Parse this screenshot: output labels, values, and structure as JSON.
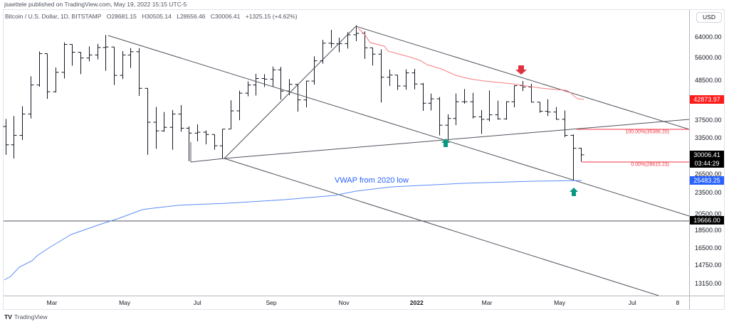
{
  "publisher": "jsaettele published on TradingView.com, May 19, 2022 15:15 UTC-5",
  "legend": {
    "symbol": "Bitcoin / U.S. Dollar, 1D, BITSTAMP",
    "open": "O28681.15",
    "high": "H30505.14",
    "low": "L28656.46",
    "close": "C30006.41",
    "change": "+1325.15 (+4.62%)"
  },
  "currency_button": "USD",
  "colors": {
    "candles": "#131722",
    "ma": "#f23645",
    "vwap": "#2962ff",
    "arrow_up": "#089981",
    "arrow_down": "#f23645"
  },
  "chart_data": {
    "type": "ohlc",
    "yscale": "log",
    "ylim": [
      12000,
      72000
    ],
    "y_ticks": [
      64000,
      56000,
      48500,
      37500,
      33500,
      26500,
      23500,
      20500,
      18500,
      16500,
      14750,
      13150
    ],
    "y_tick_labels": [
      "64000.00",
      "56000.00",
      "48500.00",
      "37500.00",
      "33500.00",
      "26500.00",
      "23500.00",
      "20500.00",
      "18500.00",
      "16500.00",
      "14750.00",
      "13150.00"
    ],
    "x_ticks": [
      {
        "label": "Mar",
        "date": "2021-03-01"
      },
      {
        "label": "May",
        "date": "2021-05-01"
      },
      {
        "label": "Jul",
        "date": "2021-07-01"
      },
      {
        "label": "Sep",
        "date": "2021-09-01"
      },
      {
        "label": "Nov",
        "date": "2021-11-01"
      },
      {
        "label": "2022",
        "date": "2022-01-01",
        "bold": true
      },
      {
        "label": "Mar",
        "date": "2022-03-01"
      },
      {
        "label": "May",
        "date": "2022-05-01"
      },
      {
        "label": "Jul",
        "date": "2022-07-01"
      },
      {
        "label": "8",
        "date": "2022-08-08"
      }
    ],
    "bars": [
      [
        "2021-01-18",
        36000,
        37800,
        30000,
        32000
      ],
      [
        "2021-01-25",
        32000,
        38500,
        29300,
        34000
      ],
      [
        "2021-02-01",
        34000,
        41000,
        33000,
        39000
      ],
      [
        "2021-02-08",
        39000,
        49700,
        37900,
        47000
      ],
      [
        "2021-02-15",
        47000,
        58300,
        46500,
        57500
      ],
      [
        "2021-02-22",
        57500,
        57500,
        43000,
        45000
      ],
      [
        "2021-03-01",
        45000,
        52600,
        44800,
        51000
      ],
      [
        "2021-03-08",
        51000,
        61800,
        49000,
        61000
      ],
      [
        "2021-03-15",
        61000,
        60000,
        53200,
        58000
      ],
      [
        "2021-03-22",
        58000,
        58000,
        50400,
        55900
      ],
      [
        "2021-03-29",
        55900,
        60200,
        54700,
        57000
      ],
      [
        "2021-04-05",
        57000,
        61200,
        55400,
        59800
      ],
      [
        "2021-04-12",
        59800,
        64800,
        51500,
        60000
      ],
      [
        "2021-04-19",
        60000,
        57500,
        47000,
        50000
      ],
      [
        "2021-04-26",
        50000,
        58400,
        48800,
        57000
      ],
      [
        "2021-05-03",
        57000,
        59600,
        52400,
        58200
      ],
      [
        "2021-05-10",
        58200,
        59600,
        43800,
        46000
      ],
      [
        "2021-05-17",
        46000,
        45000,
        30000,
        37000
      ],
      [
        "2021-05-24",
        37000,
        40800,
        31200,
        35000
      ],
      [
        "2021-05-31",
        35000,
        39500,
        34800,
        35800
      ],
      [
        "2021-06-07",
        35800,
        40000,
        31000,
        39000
      ],
      [
        "2021-06-14",
        39000,
        41300,
        34800,
        35600
      ],
      [
        "2021-06-21",
        35600,
        36000,
        28800,
        34500
      ],
      [
        "2021-06-28",
        34500,
        36500,
        32700,
        34700
      ],
      [
        "2021-07-05",
        34700,
        35100,
        32100,
        34200
      ],
      [
        "2021-07-12",
        34200,
        33900,
        31000,
        31800
      ],
      [
        "2021-07-19",
        31800,
        35400,
        29300,
        35400
      ],
      [
        "2021-07-26",
        35400,
        42600,
        35400,
        39800
      ],
      [
        "2021-08-02",
        39800,
        45300,
        37500,
        44600
      ],
      [
        "2021-08-09",
        44600,
        48100,
        43700,
        47000
      ],
      [
        "2021-08-16",
        47000,
        50500,
        43900,
        49000
      ],
      [
        "2021-08-23",
        49000,
        50400,
        46400,
        48800
      ],
      [
        "2021-08-30",
        48800,
        52900,
        46500,
        51800
      ],
      [
        "2021-09-06",
        51800,
        52800,
        42800,
        45200
      ],
      [
        "2021-09-13",
        45200,
        48800,
        44000,
        47200
      ],
      [
        "2021-09-20",
        47200,
        47300,
        39600,
        42700
      ],
      [
        "2021-09-27",
        42700,
        48300,
        40700,
        48200
      ],
      [
        "2021-10-04",
        48200,
        56500,
        47100,
        54900
      ],
      [
        "2021-10-11",
        54900,
        62800,
        53900,
        61500
      ],
      [
        "2021-10-18",
        61500,
        67000,
        59700,
        61300
      ],
      [
        "2021-10-25",
        61300,
        63700,
        58000,
        61300
      ],
      [
        "2021-11-01",
        61300,
        66000,
        59400,
        64900
      ],
      [
        "2021-11-08",
        64900,
        69000,
        62300,
        65500
      ],
      [
        "2021-11-15",
        65500,
        66300,
        55600,
        59700
      ],
      [
        "2021-11-22",
        59700,
        59300,
        53300,
        57300
      ],
      [
        "2021-11-29",
        57300,
        59100,
        42000,
        49400
      ],
      [
        "2021-12-06",
        49400,
        51900,
        46700,
        50100
      ],
      [
        "2021-12-13",
        50100,
        50000,
        45500,
        46700
      ],
      [
        "2021-12-20",
        46700,
        52000,
        45600,
        50800
      ],
      [
        "2021-12-27",
        50800,
        52100,
        45700,
        47300
      ],
      [
        "2022-01-03",
        47300,
        47600,
        39800,
        41800
      ],
      [
        "2022-01-10",
        41800,
        44500,
        39900,
        43000
      ],
      [
        "2022-01-17",
        43000,
        43500,
        34000,
        36300
      ],
      [
        "2022-01-24",
        36300,
        38900,
        32900,
        37900
      ],
      [
        "2022-01-31",
        37900,
        44500,
        36300,
        42200
      ],
      [
        "2022-02-07",
        42200,
        45800,
        41700,
        42200
      ],
      [
        "2022-02-14",
        42200,
        44700,
        37900,
        38300
      ],
      [
        "2022-02-21",
        38300,
        40000,
        34300,
        37700
      ],
      [
        "2022-02-28",
        37700,
        45400,
        37200,
        38800
      ],
      [
        "2022-03-07",
        38800,
        42500,
        37600,
        37800
      ],
      [
        "2022-03-14",
        37800,
        42300,
        37600,
        42200
      ],
      [
        "2022-03-21",
        42200,
        46900,
        40700,
        46800
      ],
      [
        "2022-03-28",
        46800,
        48200,
        45200,
        46400
      ],
      [
        "2022-04-04",
        46400,
        47400,
        42000,
        42100
      ],
      [
        "2022-04-11",
        42100,
        41500,
        39300,
        39700
      ],
      [
        "2022-04-18",
        39700,
        42900,
        38500,
        39500
      ],
      [
        "2022-04-25",
        39500,
        40800,
        37600,
        37700
      ],
      [
        "2022-05-02",
        37700,
        39900,
        33600,
        34000
      ],
      [
        "2022-05-09",
        34000,
        34200,
        25400,
        31300
      ],
      [
        "2022-05-16",
        31300,
        31400,
        28700,
        30006
      ]
    ],
    "price_badges": [
      {
        "value": 42873.97,
        "label": "42873.97",
        "color": "#ff1a1a"
      },
      {
        "value": 30006.41,
        "label": "30006.41",
        "sub": "03:44:29",
        "color": "#000000"
      },
      {
        "value": 25483.25,
        "label": "25483.25",
        "color": "#2962ff"
      },
      {
        "value": 19666.0,
        "label": "19666.00",
        "color": "#000000"
      }
    ],
    "annotations": {
      "vwap_label": "VWAP from 2020 low",
      "fib_100": "100.00%(35386.20)",
      "fib_0": "0.00%(28615.23)"
    }
  },
  "footer": {
    "logo_text": "TradingView"
  }
}
